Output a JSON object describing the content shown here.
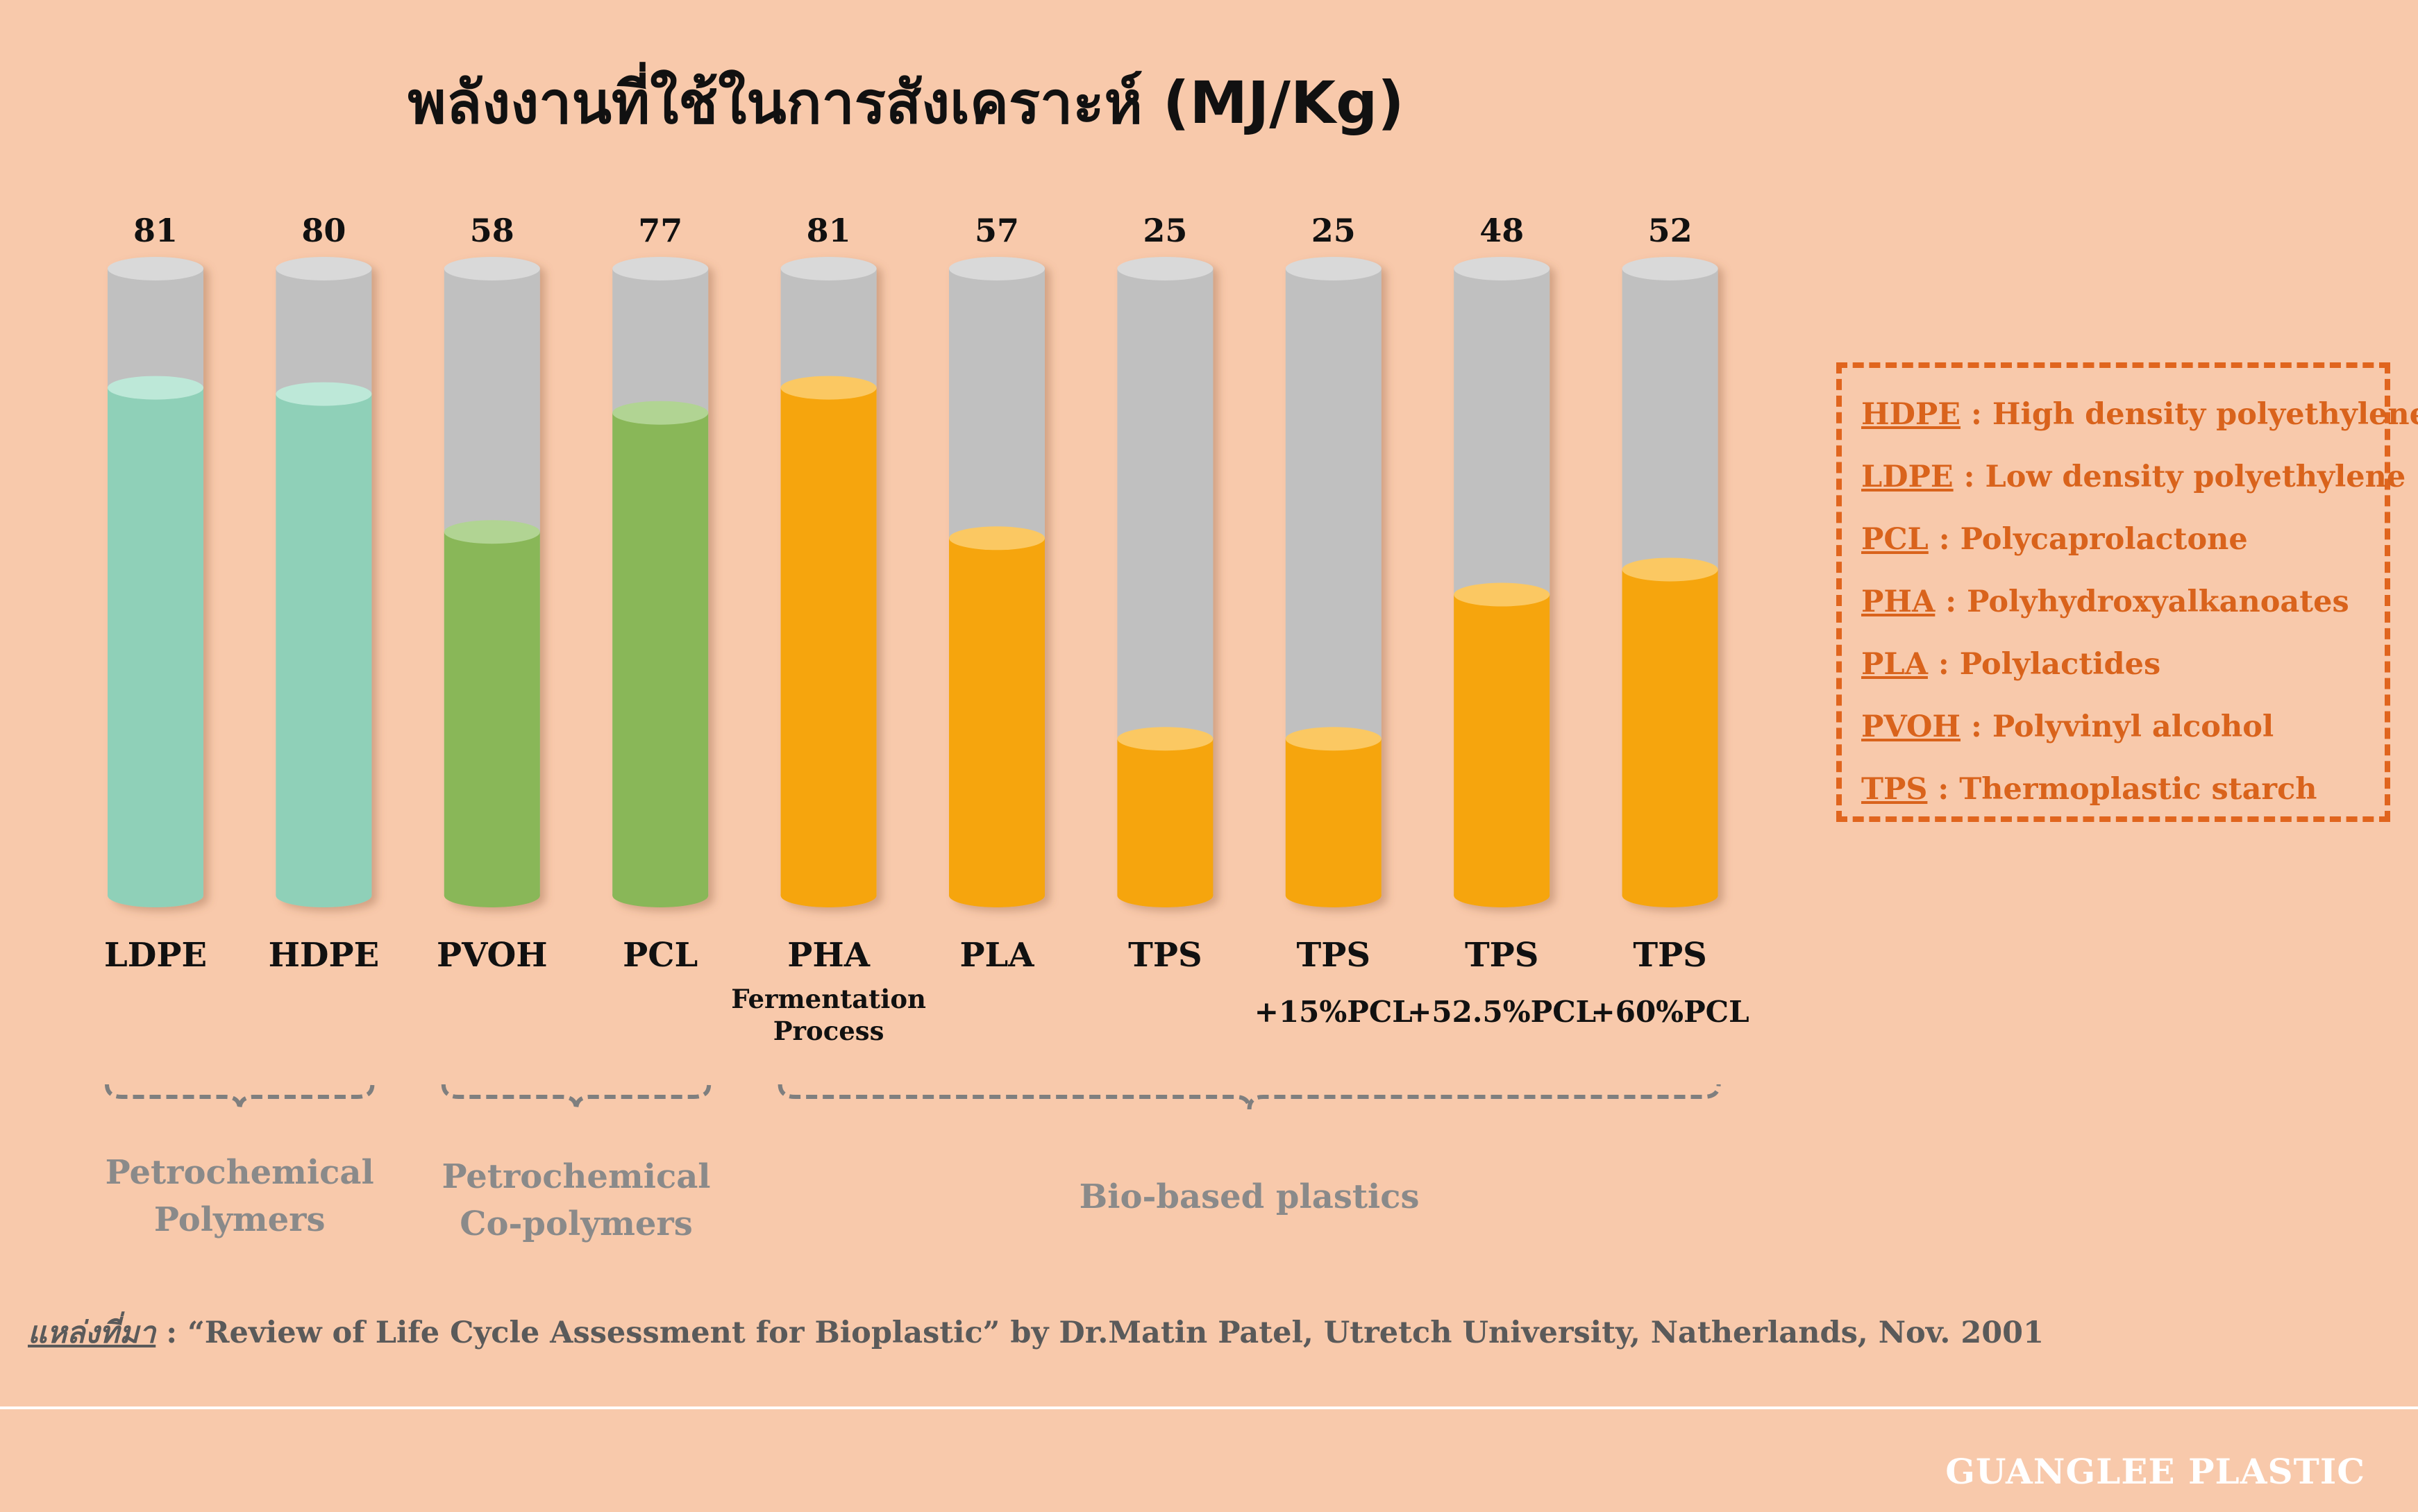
{
  "chart_data": {
    "type": "bar",
    "title": "พลังงานที่ใช้ในการสังเคราะห์ (MJ/Kg)",
    "ylim": [
      0,
      100
    ],
    "bars": [
      {
        "label": "LDPE",
        "sub": "",
        "value": 81,
        "color": "#8FD0B8",
        "cap": "#BDE8D8"
      },
      {
        "label": "HDPE",
        "sub": "",
        "value": 80,
        "color": "#8FD0B8",
        "cap": "#BDE8D8"
      },
      {
        "label": "PVOH",
        "sub": "",
        "value": 58,
        "color": "#89B758",
        "cap": "#B1D493"
      },
      {
        "label": "PCL",
        "sub": "",
        "value": 77,
        "color": "#89B758",
        "cap": "#B1D493"
      },
      {
        "label": "PHA",
        "sub": "Fermentation Process",
        "value": 81,
        "color": "#F6A507",
        "cap": "#FBC862"
      },
      {
        "label": "PLA",
        "sub": "",
        "value": 57,
        "color": "#F6A507",
        "cap": "#FBC862"
      },
      {
        "label": "TPS",
        "sub": "",
        "value": 25,
        "color": "#F6A507",
        "cap": "#FBC862"
      },
      {
        "label": "TPS",
        "sub": "+15%PCL",
        "value": 25,
        "color": "#F6A507",
        "cap": "#FBC862"
      },
      {
        "label": "TPS",
        "sub": "+52.5%PCL",
        "value": 48,
        "color": "#F6A507",
        "cap": "#FBC862"
      },
      {
        "label": "TPS",
        "sub": "+60%PCL",
        "value": 52,
        "color": "#F6A507",
        "cap": "#FBC862"
      }
    ],
    "groups": [
      {
        "from": 0,
        "to": 1,
        "label_lines": [
          "Petrochemical",
          "Polymers"
        ]
      },
      {
        "from": 2,
        "to": 3,
        "label_lines": [
          "Petrochemical",
          "Co-polymers"
        ]
      },
      {
        "from": 4,
        "to": 9,
        "label_lines": [
          "Bio-based plastics"
        ]
      }
    ]
  },
  "legend": {
    "items": [
      {
        "abbr": "HDPE",
        "desc": "High density polyethylene"
      },
      {
        "abbr": "LDPE",
        "desc": "Low density polyethylene"
      },
      {
        "abbr": "PCL",
        "desc": "Polycaprolactone"
      },
      {
        "abbr": "PHA",
        "desc": "Polyhydroxyalkanoates"
      },
      {
        "abbr": "PLA",
        "desc": "Polylactides"
      },
      {
        "abbr": "PVOH",
        "desc": "Polyvinyl alcohol"
      },
      {
        "abbr": "TPS",
        "desc": "Thermoplastic starch"
      }
    ]
  },
  "source": {
    "label": "แหล่งที่มา",
    "text": " : “Review of Life Cycle Assessment for Bioplastic” by Dr.Matin Patel, Utretch University, Natherlands, Nov. 2001"
  },
  "brand": "GUANGLEE PLASTIC",
  "colors": {
    "background": "#F8C9AB",
    "tube_gray": "#C0C0C0",
    "legend_accent": "#E0651E",
    "group_text": "#8A8A8A"
  }
}
